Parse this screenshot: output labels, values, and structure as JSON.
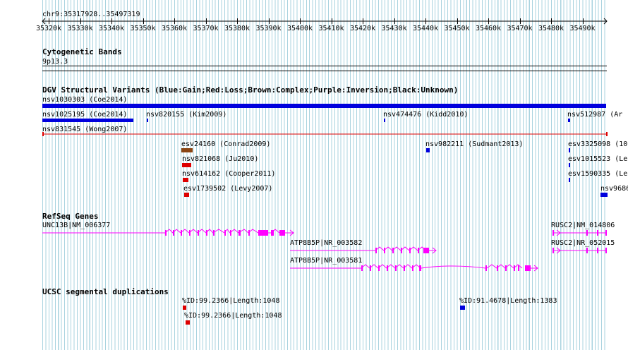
{
  "ruler": {
    "location": "chr9:35317928..35497319",
    "ticks": [
      "35320k",
      "35330k",
      "35340k",
      "35350k",
      "35360k",
      "35370k",
      "35380k",
      "35390k",
      "35400k",
      "35410k",
      "35420k",
      "35430k",
      "35440k",
      "35450k",
      "35460k",
      "35470k",
      "35480k",
      "35490k"
    ]
  },
  "tracks": {
    "cytoband": {
      "title": "Cytogenetic Bands",
      "band": "9p13.3"
    },
    "dgv": {
      "title": "DGV Structural Variants (Blue:Gain;Red:Loss;Brown:Complex;Purple:Inversion;Black:Unknown)",
      "features": [
        {
          "label": "nsv1030303 (Coe2014)",
          "color": "#0000dd"
        },
        {
          "label": "nsv1025195 (Coe2014)",
          "color": "#0000dd"
        },
        {
          "label": "nsv820155 (Kim2009)",
          "color": "#0000dd"
        },
        {
          "label": "nsv474476 (Kidd2010)",
          "color": "#0000dd"
        },
        {
          "label": "nsv512987 (Ar",
          "color": "#0000dd"
        },
        {
          "label": "nsv831545 (Wong2007)",
          "color": "#dd0000"
        },
        {
          "label": "esv24160 (Conrad2009)",
          "color": "#8b4513"
        },
        {
          "label": "nsv982211 (Sudmant2013)",
          "color": "#0000dd"
        },
        {
          "label": "esv3325098 (10",
          "color": "#0000dd"
        },
        {
          "label": "nsv821068 (Ju2010)",
          "color": "#dd0000"
        },
        {
          "label": "esv1015523 (Le",
          "color": "#0000dd"
        },
        {
          "label": "nsv614162 (Cooper2011)",
          "color": "#dd0000"
        },
        {
          "label": "esv1590335 (Le",
          "color": "#0000dd"
        },
        {
          "label": "esv1739502 (Levy2007)",
          "color": "#dd0000"
        },
        {
          "label": "nsv9686",
          "color": "#0000dd"
        }
      ]
    },
    "refseq": {
      "title": "RefSeq Genes",
      "color": "#ff00ff",
      "genes": [
        {
          "label": "UNC13B|NM_006377"
        },
        {
          "label": "RUSC2|NM_014806"
        },
        {
          "label": "ATP8B5P|NR_003582"
        },
        {
          "label": "RUSC2|NR_052015"
        },
        {
          "label": "ATP8B5P|NR_003581"
        }
      ]
    },
    "segdup": {
      "title": "UCSC segmental duplications",
      "features": [
        {
          "label": "%ID:99.2366|Length:1048",
          "color": "#dd0000"
        },
        {
          "label": "%ID:91.4678|Length:1383",
          "color": "#0000dd"
        },
        {
          "label": "%ID:99.2366|Length:1048",
          "color": "#dd0000"
        }
      ]
    }
  }
}
